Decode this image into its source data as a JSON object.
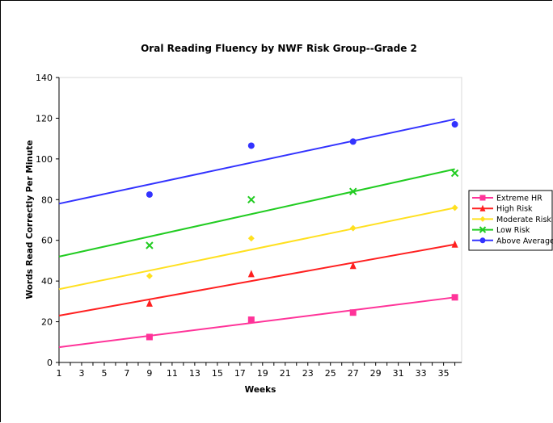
{
  "chart_data": {
    "type": "scatter",
    "title": "Oral Reading Fluency by NWF Risk Group--Grade 2",
    "xlabel": "Weeks",
    "ylabel": "Words Read Correctly Per Minute",
    "xlim": [
      1,
      36.6
    ],
    "ylim": [
      0,
      140
    ],
    "xticks": [
      "1",
      "3",
      "5",
      "7",
      "9",
      "11",
      "13",
      "15",
      "17",
      "19",
      "21",
      "23",
      "25",
      "27",
      "29",
      "31",
      "33",
      "35"
    ],
    "yticks": [
      "0",
      "20",
      "40",
      "60",
      "80",
      "100",
      "120",
      "140"
    ],
    "grid": false,
    "legend_position": "right",
    "series": [
      {
        "name": "Extreme HR",
        "color": "#ff3399",
        "marker": "square",
        "points": [
          [
            9,
            12.5
          ],
          [
            18,
            21
          ],
          [
            27,
            24.5
          ],
          [
            36,
            32
          ]
        ],
        "trend": [
          [
            1,
            7.5
          ],
          [
            36,
            32
          ]
        ]
      },
      {
        "name": "High Risk",
        "color": "#ff2020",
        "marker": "triangle",
        "points": [
          [
            9,
            29
          ],
          [
            18,
            43.5
          ],
          [
            27,
            47.5
          ],
          [
            36,
            58
          ]
        ],
        "trend": [
          [
            1,
            23
          ],
          [
            36,
            58
          ]
        ]
      },
      {
        "name": "Moderate Risk",
        "color": "#ffe020",
        "marker": "diamond",
        "points": [
          [
            9,
            42.5
          ],
          [
            18,
            61
          ],
          [
            27,
            66
          ],
          [
            36,
            76
          ]
        ],
        "trend": [
          [
            1,
            36
          ],
          [
            36,
            76
          ]
        ]
      },
      {
        "name": "Low Risk",
        "color": "#22cc22",
        "marker": "x",
        "points": [
          [
            9,
            57.5
          ],
          [
            18,
            80
          ],
          [
            27,
            84
          ],
          [
            36,
            93
          ]
        ],
        "trend": [
          [
            1,
            52
          ],
          [
            36,
            95
          ]
        ]
      },
      {
        "name": "Above Average",
        "color": "#3333ff",
        "marker": "circle",
        "points": [
          [
            9,
            82.5
          ],
          [
            18,
            106.5
          ],
          [
            27,
            108.5
          ],
          [
            36,
            117
          ]
        ],
        "trend": [
          [
            1,
            78
          ],
          [
            36,
            119.5
          ]
        ]
      }
    ]
  }
}
